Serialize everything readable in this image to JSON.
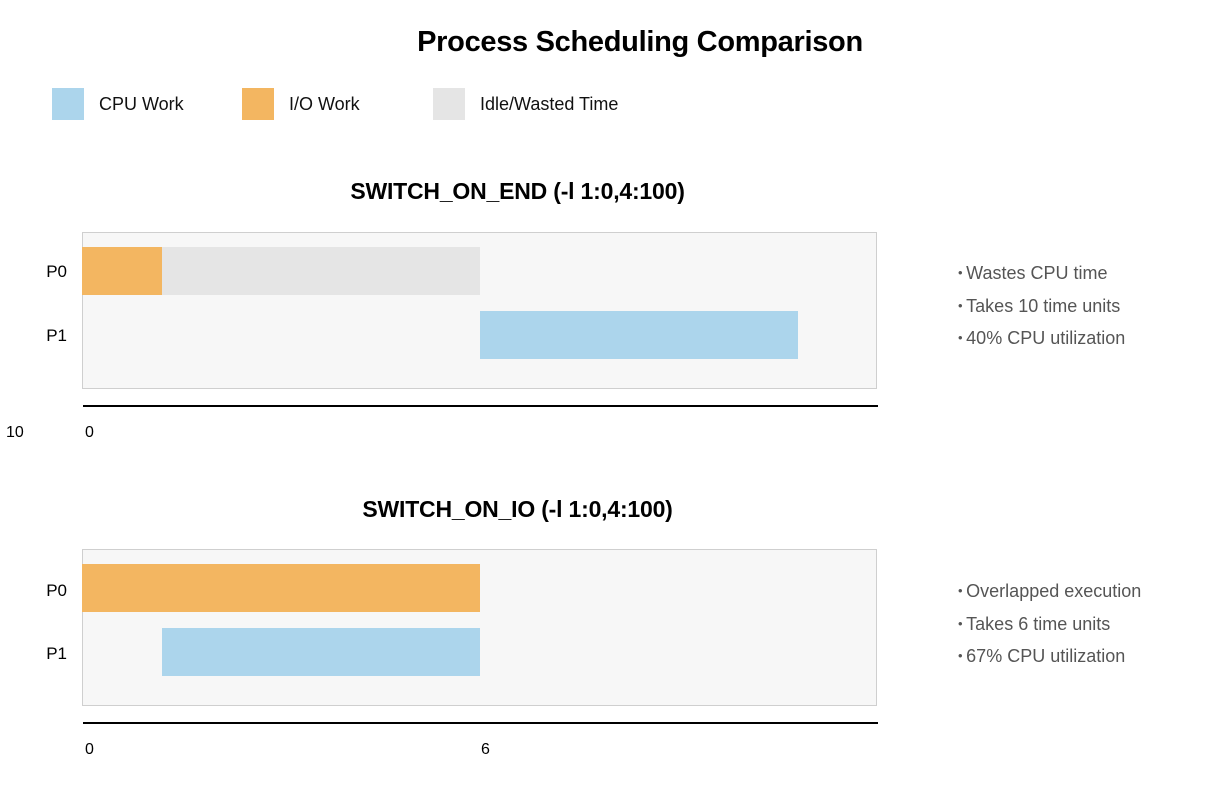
{
  "title": "Process Scheduling Comparison",
  "legend": [
    {
      "label": "CPU Work",
      "color": "#acd5ec"
    },
    {
      "label": "I/O Work",
      "color": "#f3b661"
    },
    {
      "label": "Idle/Wasted Time",
      "color": "#e5e5e5"
    }
  ],
  "chart_data": [
    {
      "type": "gantt",
      "title": "SWITCH_ON_END (-l 1:0,4:100)",
      "rows": [
        "P0",
        "P1"
      ],
      "xlim": [
        0,
        10
      ],
      "segments": [
        {
          "row": "P0",
          "start": 0,
          "end": 1,
          "kind": "I/O Work"
        },
        {
          "row": "P0",
          "start": 1,
          "end": 5,
          "kind": "Idle/Wasted Time"
        },
        {
          "row": "P1",
          "start": 5,
          "end": 9,
          "kind": "CPU Work"
        }
      ],
      "ticks": [
        "0",
        "10"
      ],
      "notes": [
        "Wastes CPU time",
        "Takes 10 time units",
        "40% CPU utilization"
      ]
    },
    {
      "type": "gantt",
      "title": "SWITCH_ON_IO (-l 1:0,4:100)",
      "rows": [
        "P0",
        "P1"
      ],
      "xlim": [
        0,
        10
      ],
      "segments": [
        {
          "row": "P0",
          "start": 0,
          "end": 5,
          "kind": "I/O Work"
        },
        {
          "row": "P1",
          "start": 1,
          "end": 5,
          "kind": "CPU Work"
        }
      ],
      "ticks": [
        "0",
        "6"
      ],
      "notes": [
        "Overlapped execution",
        "Takes 6 time units",
        "67% CPU utilization"
      ]
    }
  ]
}
